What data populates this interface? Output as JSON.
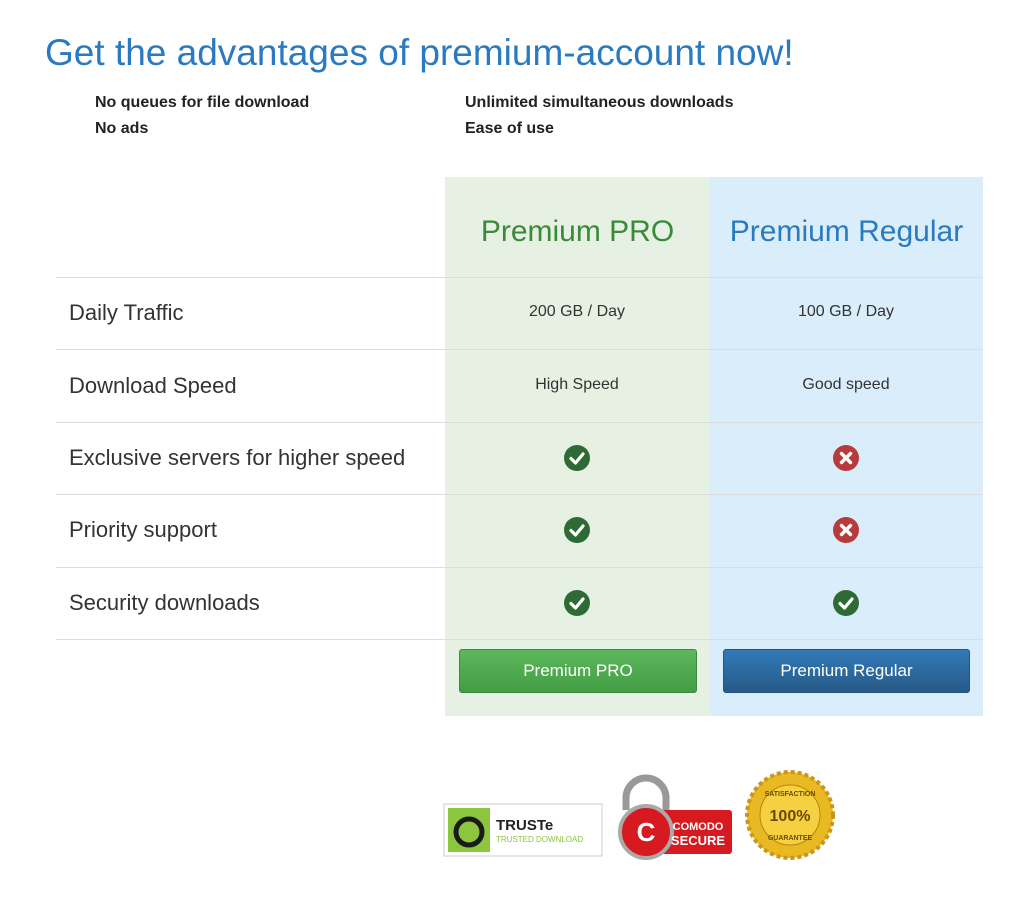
{
  "header": {
    "title": "Get the advantages of premium-account now!"
  },
  "features": [
    [
      "No queues for file download",
      "Unlimited simultaneous downloads"
    ],
    [
      "No ads",
      "Ease of use"
    ]
  ],
  "table": {
    "plans": [
      "Premium PRO",
      "Premium Regular"
    ],
    "rows": [
      {
        "label": "Daily Traffic",
        "cells": [
          "200 GB / Day",
          "100 GB / Day"
        ]
      },
      {
        "label": "Download Speed",
        "cells": [
          "High Speed",
          "Good speed"
        ]
      },
      {
        "label": "Exclusive servers for higher speed",
        "cells": [
          true,
          false
        ]
      },
      {
        "label": "Priority support",
        "cells": [
          true,
          false
        ]
      },
      {
        "label": "Security downloads",
        "cells": [
          true,
          true
        ]
      }
    ],
    "buttons": [
      "Premium PRO",
      "Premium Regular"
    ]
  },
  "badges": {
    "truste": {
      "name": "TRUSTe",
      "tagline": "TRUSTED DOWNLOAD"
    },
    "comodo": {
      "name": "COMODO",
      "tagline": "SECURE"
    },
    "guarantee": {
      "top": "SATISFACTION",
      "center": "100%",
      "bottom": "GUARANTEE"
    }
  }
}
